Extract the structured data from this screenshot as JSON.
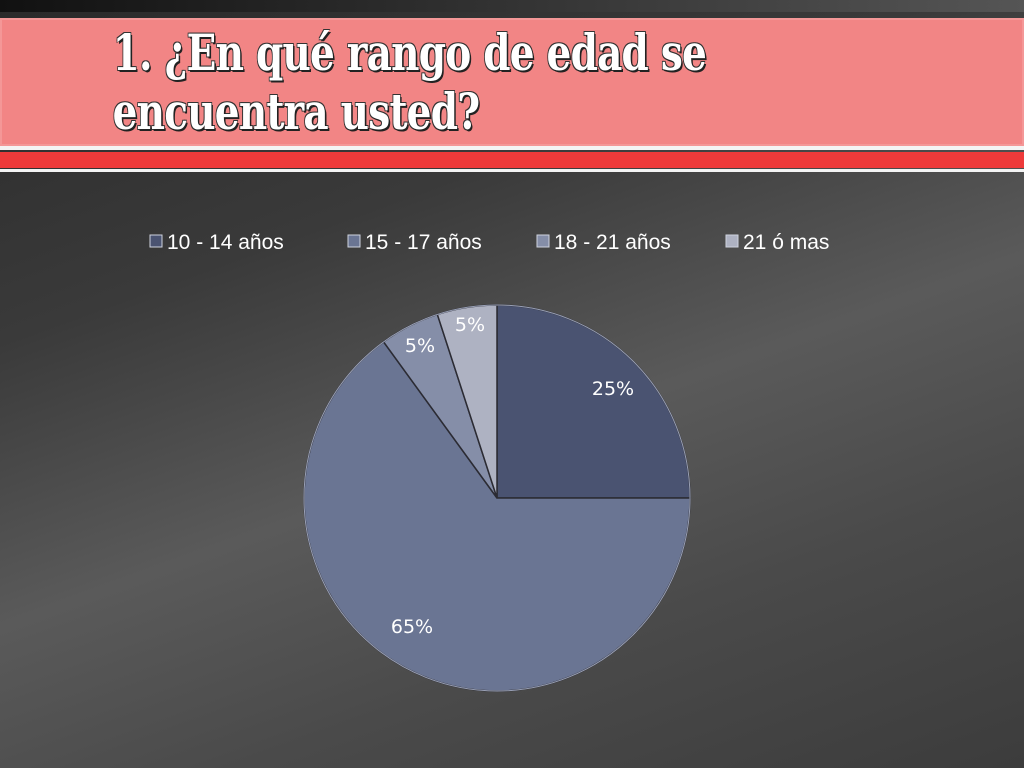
{
  "slide": {
    "title": "1. ¿En qué rango de edad se encuentra usted?"
  },
  "chart_data": {
    "type": "pie",
    "categories": [
      "10 -  14 años",
      "15 - 17 años",
      "18 - 21 años",
      "21  ó mas"
    ],
    "values": [
      25,
      65,
      5,
      5
    ],
    "data_labels": [
      "25%",
      "65%",
      "5%",
      "5%"
    ],
    "legend_position": "top",
    "colors": [
      "#4a5371",
      "#6a7593",
      "#858ea8",
      "#aeb2c2"
    ]
  }
}
